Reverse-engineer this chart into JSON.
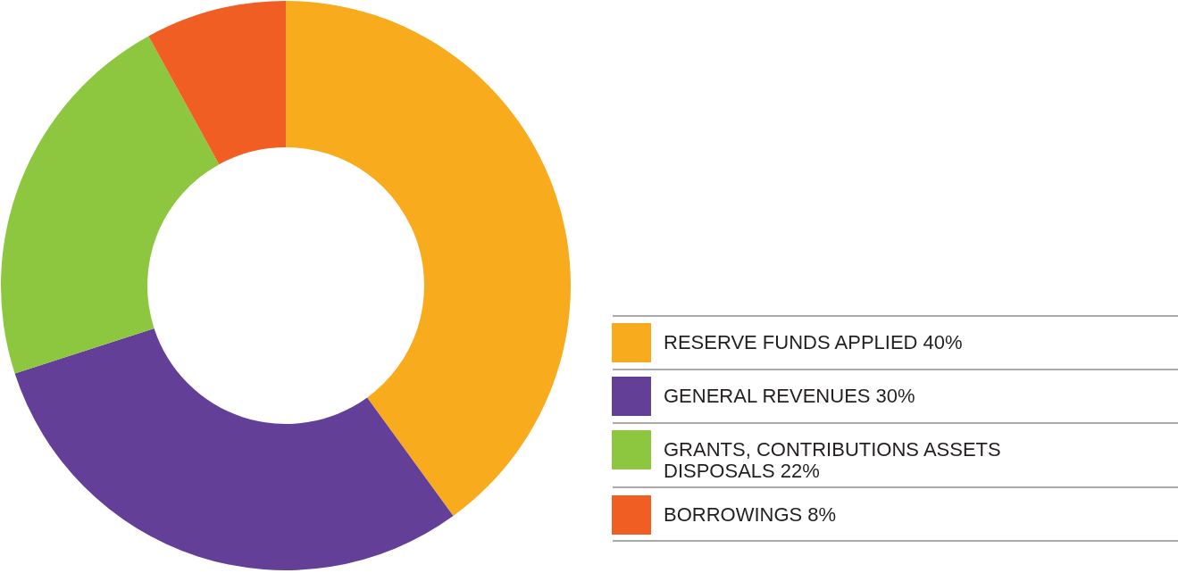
{
  "chart_data": {
    "type": "donut",
    "categories": [
      "RESERVE FUNDS APPLIED",
      "GENERAL REVENUES",
      "GRANTS, CONTRIBUTIONS ASSETS DISPOSALS",
      "BORROWINGS"
    ],
    "values": [
      40,
      30,
      22,
      8
    ],
    "value_labels": [
      "40%",
      "30%",
      "22%",
      "8%"
    ],
    "colors": [
      "#f9ab1e",
      "#643f97",
      "#8dc63f",
      "#f15e24"
    ],
    "legend": "bottom right"
  }
}
